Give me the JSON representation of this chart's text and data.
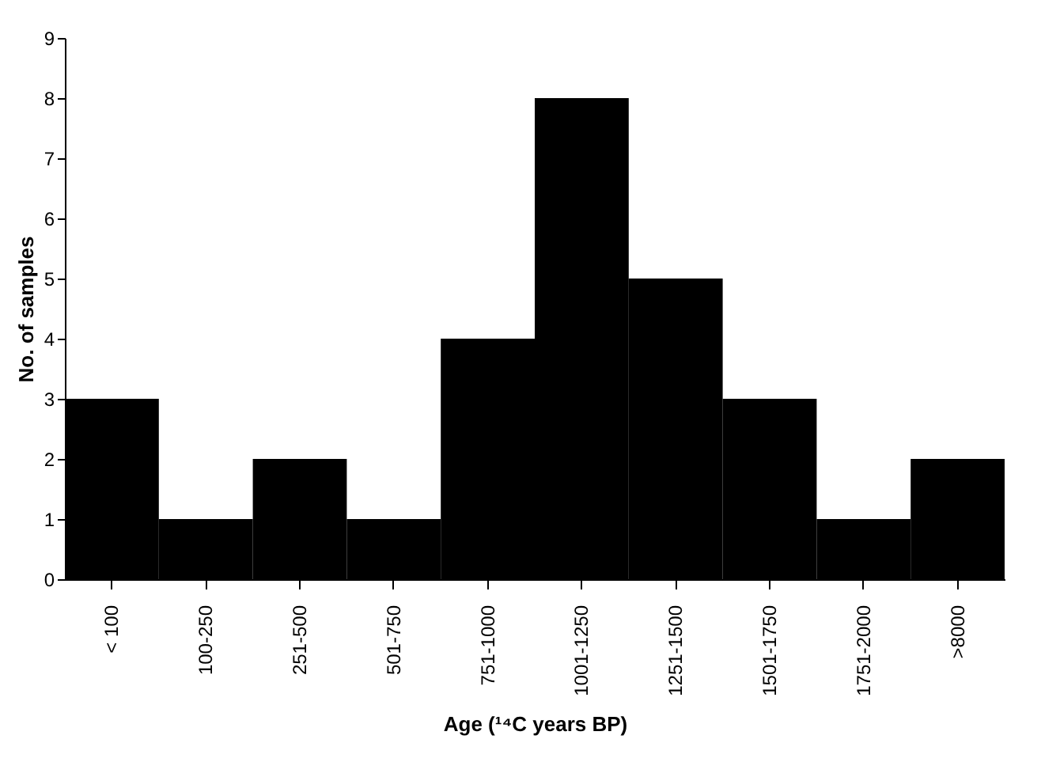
{
  "chart_data": {
    "type": "bar",
    "xlabel": "Age (¹⁴C years BP)",
    "ylabel": "No. of samples",
    "categories": [
      "< 100",
      "100-250",
      "251-500",
      "501-750",
      "751-1000",
      "1001-1250",
      "1251-1500",
      "1501-1750",
      "1751-2000",
      ">8000"
    ],
    "values": [
      3,
      1,
      2,
      1,
      4,
      8,
      5,
      3,
      1,
      2
    ],
    "color": "#000000",
    "ylim": [
      0,
      9
    ],
    "yticks": [
      0,
      1,
      2,
      3,
      4,
      5,
      6,
      7,
      8,
      9
    ],
    "grid": false
  }
}
